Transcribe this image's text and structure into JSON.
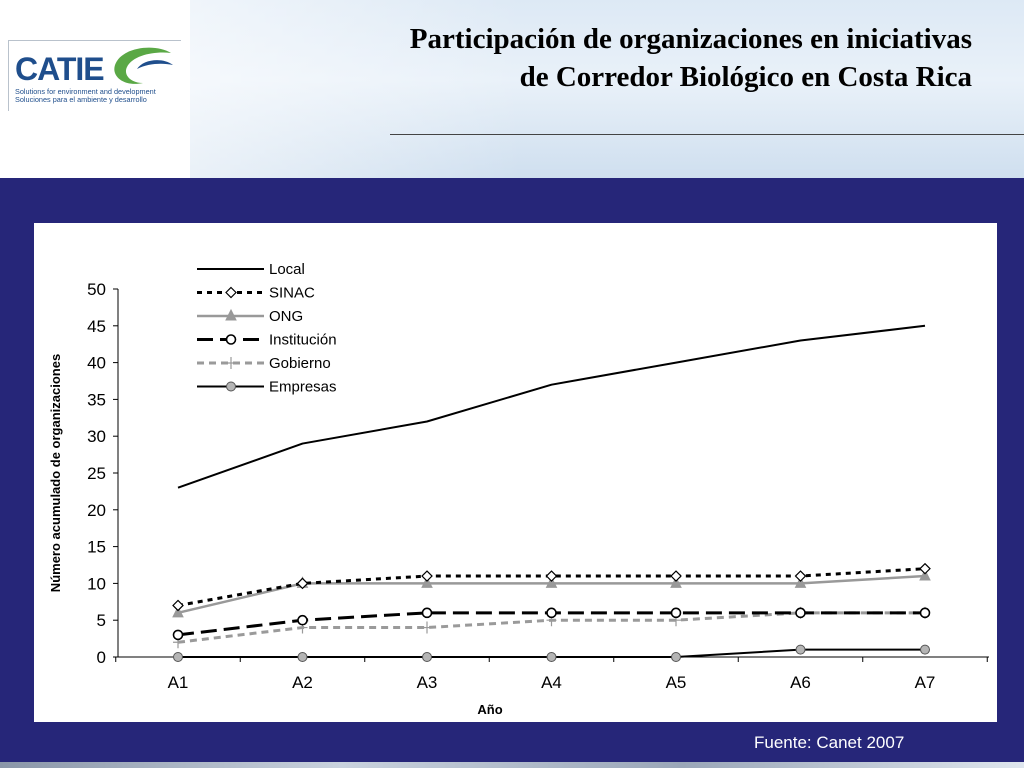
{
  "header": {
    "title_line1": "Participación de organizaciones en iniciativas",
    "title_line2": "de Corredor Biológico en Costa Rica"
  },
  "logo": {
    "wordmark": "CATIE",
    "tagline_en": "Solutions for environment and development",
    "tagline_es": "Soluciones para el ambiente y desarrollo"
  },
  "footer": {
    "source": "Fuente: Canet 2007"
  },
  "colors": {
    "band": "#262679",
    "logo_blue": "#1f4e8c",
    "logo_green": "#5aa845"
  },
  "chart_data": {
    "type": "line",
    "title": "",
    "xlabel": "Año",
    "ylabel": "Número acumulado de organizaciones",
    "categories": [
      "A1",
      "A2",
      "A3",
      "A4",
      "A5",
      "A6",
      "A7"
    ],
    "ylim": [
      0,
      50
    ],
    "yticks": [
      0,
      5,
      10,
      15,
      20,
      25,
      30,
      35,
      40,
      45,
      50
    ],
    "grid": false,
    "legend_position": "top-left",
    "series": [
      {
        "name": "Local",
        "values": [
          23,
          29,
          32,
          37,
          40,
          43,
          45
        ],
        "color": "#000000",
        "dash": "solid",
        "marker": "none"
      },
      {
        "name": "SINAC",
        "values": [
          7,
          10,
          11,
          11,
          11,
          11,
          12
        ],
        "color": "#000000",
        "dash": "dotted",
        "marker": "diamond"
      },
      {
        "name": "ONG",
        "values": [
          6,
          10,
          10,
          10,
          10,
          10,
          11
        ],
        "color": "#999999",
        "dash": "solid",
        "marker": "triangle"
      },
      {
        "name": "Institución",
        "values": [
          3,
          5,
          6,
          6,
          6,
          6,
          6
        ],
        "color": "#000000",
        "dash": "long-dash",
        "marker": "circle"
      },
      {
        "name": "Gobierno",
        "values": [
          2,
          4,
          4,
          5,
          5,
          6,
          6
        ],
        "color": "#9a9a9a",
        "dash": "dashed",
        "marker": "plus"
      },
      {
        "name": "Empresas",
        "values": [
          0,
          0,
          0,
          0,
          0,
          1,
          1
        ],
        "color": "#000000",
        "dash": "solid",
        "marker": "filled-circle"
      }
    ]
  }
}
